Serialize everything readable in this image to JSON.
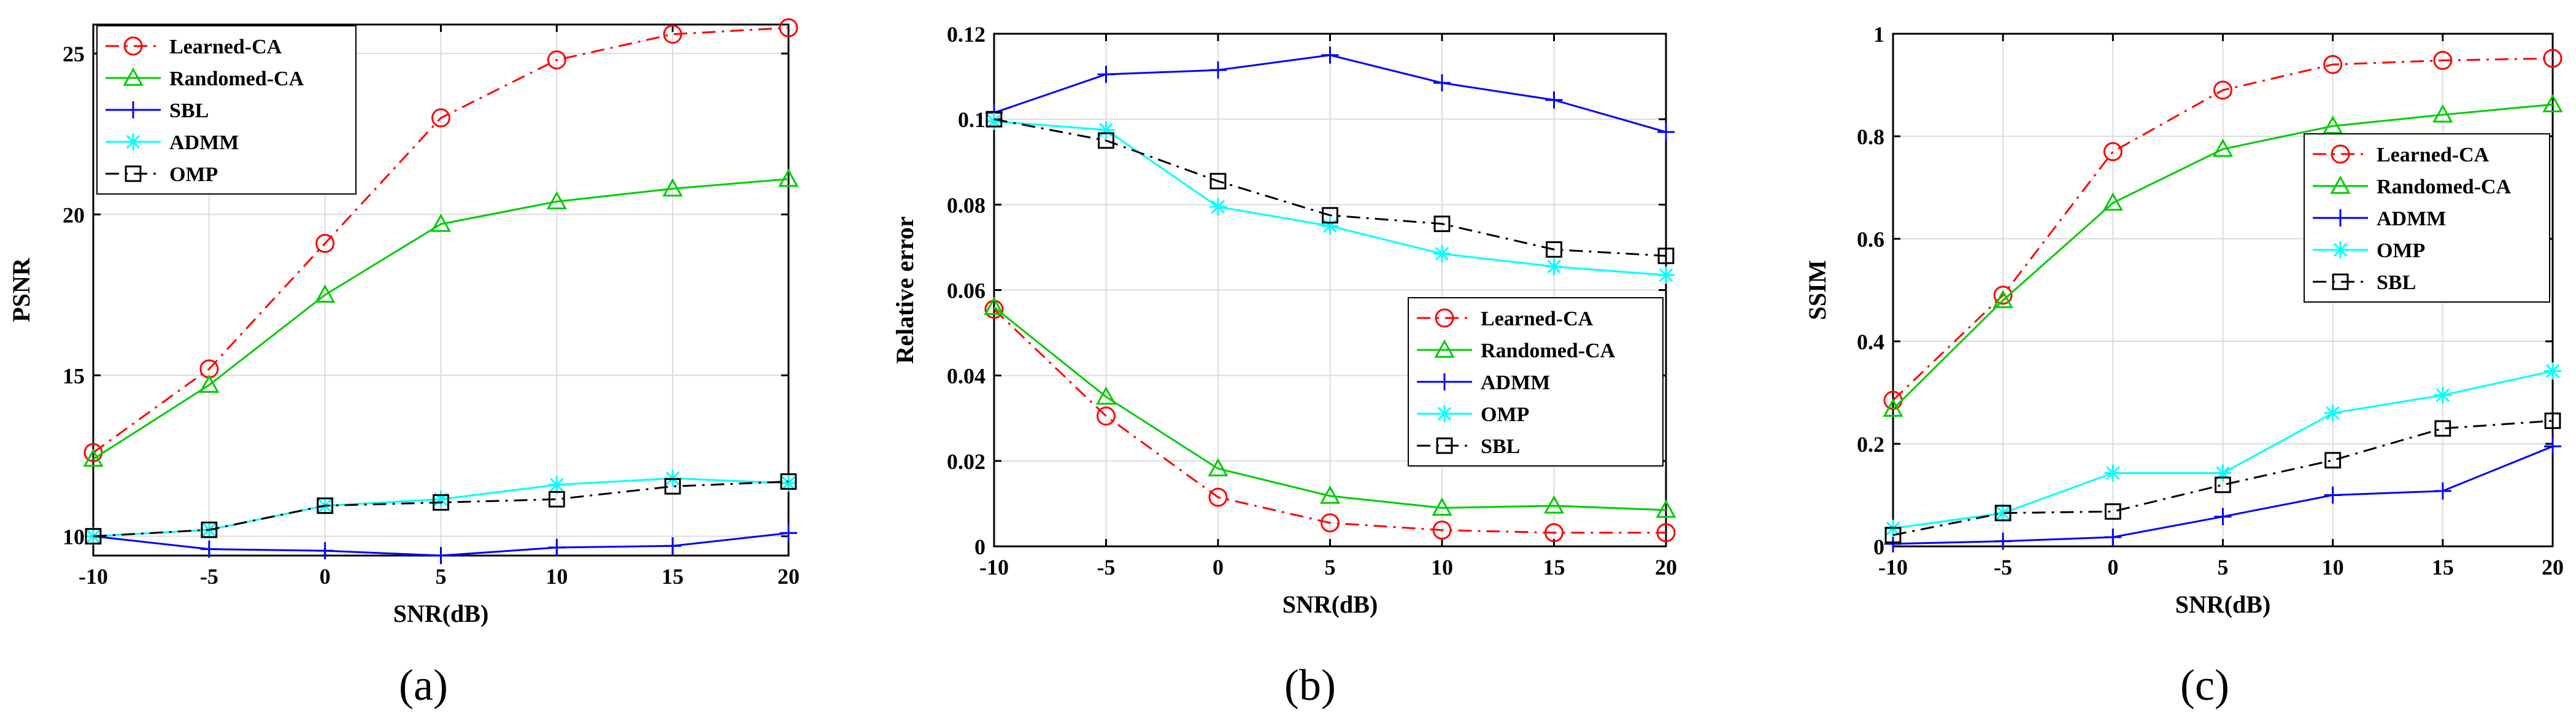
{
  "chart_data": [
    {
      "type": "line",
      "caption": "(a)",
      "xlabel": "SNR(dB)",
      "ylabel": "PSNR",
      "x": [
        -10,
        -5,
        0,
        5,
        10,
        15,
        20
      ],
      "xlim": [
        -10,
        20
      ],
      "ylim": [
        9.4,
        25.9
      ],
      "xticks": [
        -10,
        -5,
        0,
        5,
        10,
        15,
        20
      ],
      "yticks": [
        10,
        15,
        20,
        25
      ],
      "ytick_labels": [
        "10",
        "15",
        "20",
        "25"
      ],
      "grid": true,
      "legend_position": "top-left",
      "series": [
        {
          "name": "Learned-CA",
          "color": "#ff0000",
          "dash": "dashdot",
          "marker": "circle",
          "values": [
            12.6,
            15.2,
            19.1,
            23.0,
            24.8,
            25.6,
            25.8
          ]
        },
        {
          "name": "Randomed-CA",
          "color": "#00cc00",
          "dash": "solid",
          "marker": "triangle",
          "values": [
            12.4,
            14.7,
            17.5,
            19.7,
            20.4,
            20.8,
            21.1
          ]
        },
        {
          "name": "SBL",
          "color": "#0000ff",
          "dash": "solid",
          "marker": "plus",
          "values": [
            10.0,
            9.6,
            9.55,
            9.4,
            9.65,
            9.7,
            10.1
          ]
        },
        {
          "name": "ADMM",
          "color": "#00ffff",
          "dash": "solid",
          "marker": "star",
          "values": [
            10.0,
            10.2,
            10.95,
            11.15,
            11.6,
            11.8,
            11.65
          ]
        },
        {
          "name": "OMP",
          "color": "#000000",
          "dash": "dashdot",
          "marker": "square",
          "values": [
            10.0,
            10.2,
            10.95,
            11.05,
            11.15,
            11.55,
            11.7
          ]
        }
      ]
    },
    {
      "type": "line",
      "caption": "(b)",
      "xlabel": "SNR(dB)",
      "ylabel": "Relative error",
      "x": [
        -10,
        -5,
        0,
        5,
        10,
        15,
        20
      ],
      "xlim": [
        -10,
        20
      ],
      "ylim": [
        0,
        0.12
      ],
      "xticks": [
        -10,
        -5,
        0,
        5,
        10,
        15,
        20
      ],
      "yticks": [
        0,
        0.02,
        0.04,
        0.06,
        0.08,
        0.1,
        0.12
      ],
      "ytick_labels": [
        "0",
        "0.02",
        "0.04",
        "0.06",
        "0.08",
        "0.1",
        "0.12"
      ],
      "grid": true,
      "legend_position": "center-right",
      "series": [
        {
          "name": "Learned-CA",
          "color": "#ff0000",
          "dash": "dashdot",
          "marker": "circle",
          "values": [
            0.0555,
            0.0305,
            0.0115,
            0.0055,
            0.0038,
            0.0032,
            0.0032
          ]
        },
        {
          "name": "Randomed-CA",
          "color": "#00cc00",
          "dash": "solid",
          "marker": "triangle",
          "values": [
            0.056,
            0.035,
            0.0182,
            0.0118,
            0.009,
            0.0095,
            0.0085
          ]
        },
        {
          "name": "ADMM",
          "color": "#0000ff",
          "dash": "solid",
          "marker": "plus",
          "values": [
            0.1015,
            0.1105,
            0.1115,
            0.115,
            0.1085,
            0.1045,
            0.097
          ]
        },
        {
          "name": "OMP",
          "color": "#00ffff",
          "dash": "solid",
          "marker": "star",
          "values": [
            0.0995,
            0.0975,
            0.0795,
            0.075,
            0.0685,
            0.0655,
            0.0635
          ]
        },
        {
          "name": "SBL",
          "color": "#000000",
          "dash": "dashdot",
          "marker": "square",
          "values": [
            0.1,
            0.095,
            0.0855,
            0.0775,
            0.0755,
            0.0695,
            0.068
          ]
        }
      ]
    },
    {
      "type": "line",
      "caption": "(c)",
      "xlabel": "SNR(dB)",
      "ylabel": "SSIM",
      "x": [
        -10,
        -5,
        0,
        5,
        10,
        15,
        20
      ],
      "xlim": [
        -10,
        20
      ],
      "ylim": [
        0,
        1
      ],
      "xticks": [
        -10,
        -5,
        0,
        5,
        10,
        15,
        20
      ],
      "yticks": [
        0,
        0.2,
        0.4,
        0.6,
        0.8,
        1
      ],
      "ytick_labels": [
        "0",
        "0.2",
        "0.4",
        "0.6",
        "0.8",
        "1"
      ],
      "grid": true,
      "legend_position": "upper-right",
      "series": [
        {
          "name": "Learned-CA",
          "color": "#ff0000",
          "dash": "dashdot",
          "marker": "circle",
          "values": [
            0.285,
            0.49,
            0.77,
            0.89,
            0.94,
            0.948,
            0.952
          ]
        },
        {
          "name": "Randomed-CA",
          "color": "#00cc00",
          "dash": "solid",
          "marker": "triangle",
          "values": [
            0.268,
            0.48,
            0.67,
            0.775,
            0.82,
            0.842,
            0.862
          ]
        },
        {
          "name": "ADMM",
          "color": "#0000ff",
          "dash": "solid",
          "marker": "plus",
          "values": [
            0.005,
            0.01,
            0.018,
            0.058,
            0.1,
            0.108,
            0.195
          ]
        },
        {
          "name": "OMP",
          "color": "#00ffff",
          "dash": "solid",
          "marker": "star",
          "values": [
            0.035,
            0.065,
            0.143,
            0.143,
            0.26,
            0.295,
            0.342
          ]
        },
        {
          "name": "SBL",
          "color": "#000000",
          "dash": "dashdot",
          "marker": "square",
          "values": [
            0.022,
            0.065,
            0.068,
            0.12,
            0.168,
            0.23,
            0.245
          ]
        }
      ]
    }
  ]
}
